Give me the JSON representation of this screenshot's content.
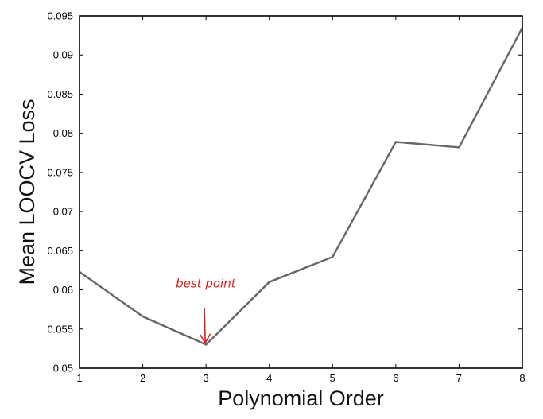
{
  "chart_data": {
    "type": "line",
    "xlabel": "Polynomial Order",
    "ylabel": "Mean LOOCV Loss",
    "xlim": [
      1,
      8
    ],
    "ylim": [
      0.05,
      0.095
    ],
    "x_ticks": [
      "1",
      "2",
      "3",
      "4",
      "5",
      "6",
      "7",
      "8"
    ],
    "y_ticks": [
      "0.05",
      "0.055",
      "0.06",
      "0.065",
      "0.07",
      "0.075",
      "0.08",
      "0.085",
      "0.09",
      "0.095"
    ],
    "grid": false,
    "series": [
      {
        "x": [
          1,
          2,
          3,
          4,
          5,
          6,
          7,
          8
        ],
        "y": [
          0.0623,
          0.0566,
          0.053,
          0.061,
          0.0642,
          0.0789,
          0.0782,
          0.0935
        ],
        "color": "#666666"
      }
    ],
    "annotation": {
      "text": "best point",
      "x": 3,
      "y": 0.053,
      "color": "#e0201a"
    }
  }
}
